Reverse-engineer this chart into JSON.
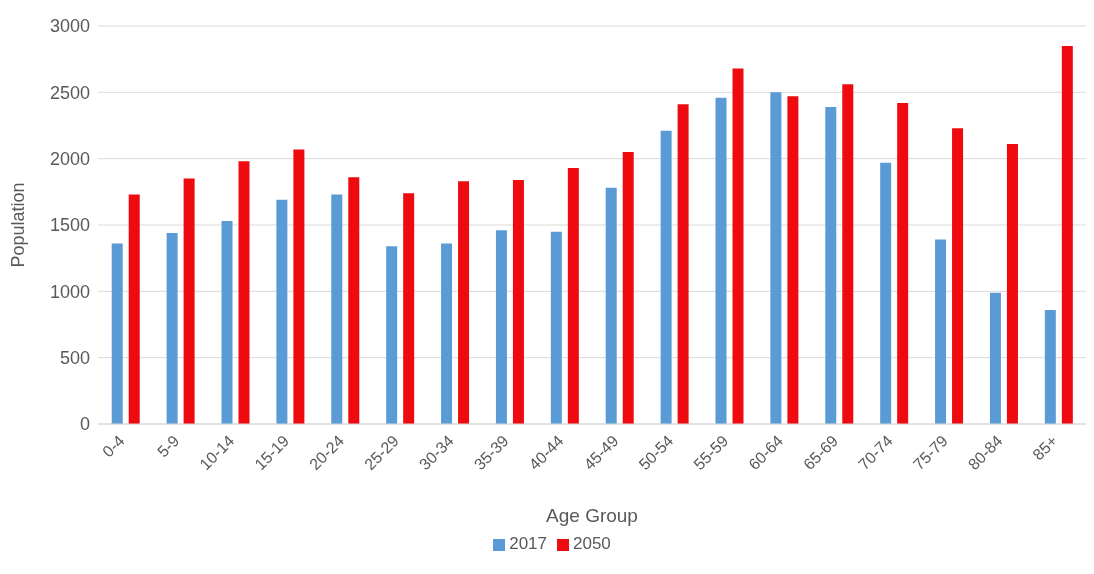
{
  "chart_data": {
    "type": "bar",
    "xlabel": "Age Group",
    "ylabel": "Population",
    "categories": [
      "0-4",
      "5-9",
      "10-14",
      "15-19",
      "20-24",
      "25-29",
      "30-34",
      "35-39",
      "40-44",
      "45-49",
      "50-54",
      "55-59",
      "60-64",
      "65-69",
      "70-74",
      "75-79",
      "80-84",
      "85+"
    ],
    "series": [
      {
        "name": "2017",
        "color": "#5b9bd5",
        "values": [
          1360,
          1440,
          1530,
          1690,
          1730,
          1340,
          1360,
          1460,
          1450,
          1780,
          2210,
          2460,
          2500,
          2390,
          1970,
          1390,
          990,
          860
        ]
      },
      {
        "name": "2050",
        "color": "#ee0a0f",
        "values": [
          1730,
          1850,
          1980,
          2070,
          1860,
          1740,
          1830,
          1840,
          1930,
          2050,
          2410,
          2680,
          2470,
          2560,
          2420,
          2230,
          2110,
          2850
        ]
      }
    ],
    "ylim": [
      0,
      3000
    ],
    "yticks": [
      0,
      500,
      1000,
      1500,
      2000,
      2500,
      3000
    ],
    "grid": "y",
    "legend": "bottom"
  }
}
